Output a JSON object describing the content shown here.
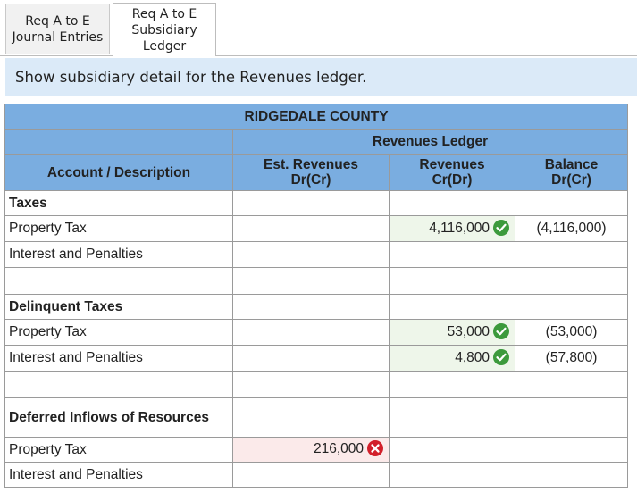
{
  "tabs": [
    {
      "line1": "Req A to E",
      "line2": "Journal Entries",
      "line3": ""
    },
    {
      "line1": "Req A to E",
      "line2": "Subsidiary",
      "line3": "Ledger"
    }
  ],
  "instruction": "Show subsidiary detail for the Revenues ledger.",
  "ledger": {
    "title": "RIDGEDALE COUNTY",
    "subtitle": "Revenues Ledger",
    "columns": {
      "account": "Account / Description",
      "est_line1": "Est. Revenues",
      "est_line2": "Dr(Cr)",
      "rev_line1": "Revenues",
      "rev_line2": "Cr(Dr)",
      "bal_line1": "Balance",
      "bal_line2": "Dr(Cr)"
    },
    "rows": [
      {
        "account": "Taxes",
        "est": "",
        "rev": "",
        "bal": ""
      },
      {
        "account": "Property Tax",
        "est": "",
        "rev": "4,116,000",
        "bal": "(4,116,000)"
      },
      {
        "account": "Interest and Penalties",
        "est": "",
        "rev": "",
        "bal": ""
      },
      {
        "account": "",
        "est": "",
        "rev": "",
        "bal": ""
      },
      {
        "account": "Delinquent Taxes",
        "est": "",
        "rev": "",
        "bal": ""
      },
      {
        "account": "Property Tax",
        "est": "",
        "rev": "53,000",
        "bal": "(53,000)"
      },
      {
        "account": "Interest and Penalties",
        "est": "",
        "rev": "4,800",
        "bal": "(57,800)"
      },
      {
        "account": "",
        "est": "",
        "rev": "",
        "bal": ""
      },
      {
        "account": "Deferred Inflows of Resources",
        "est": "",
        "rev": "",
        "bal": ""
      },
      {
        "account": "Property Tax",
        "est": "216,000",
        "rev": "",
        "bal": ""
      },
      {
        "account": "Interest and Penalties",
        "est": "",
        "rev": "",
        "bal": ""
      }
    ]
  },
  "colors": {
    "header_blue": "#7aade0",
    "instruction_bg": "#dbeaf8",
    "correct_green": "#3c9a3c",
    "incorrect_red": "#d21f2a"
  },
  "icons": {
    "correct": "check-circle-icon",
    "incorrect": "x-circle-icon"
  }
}
